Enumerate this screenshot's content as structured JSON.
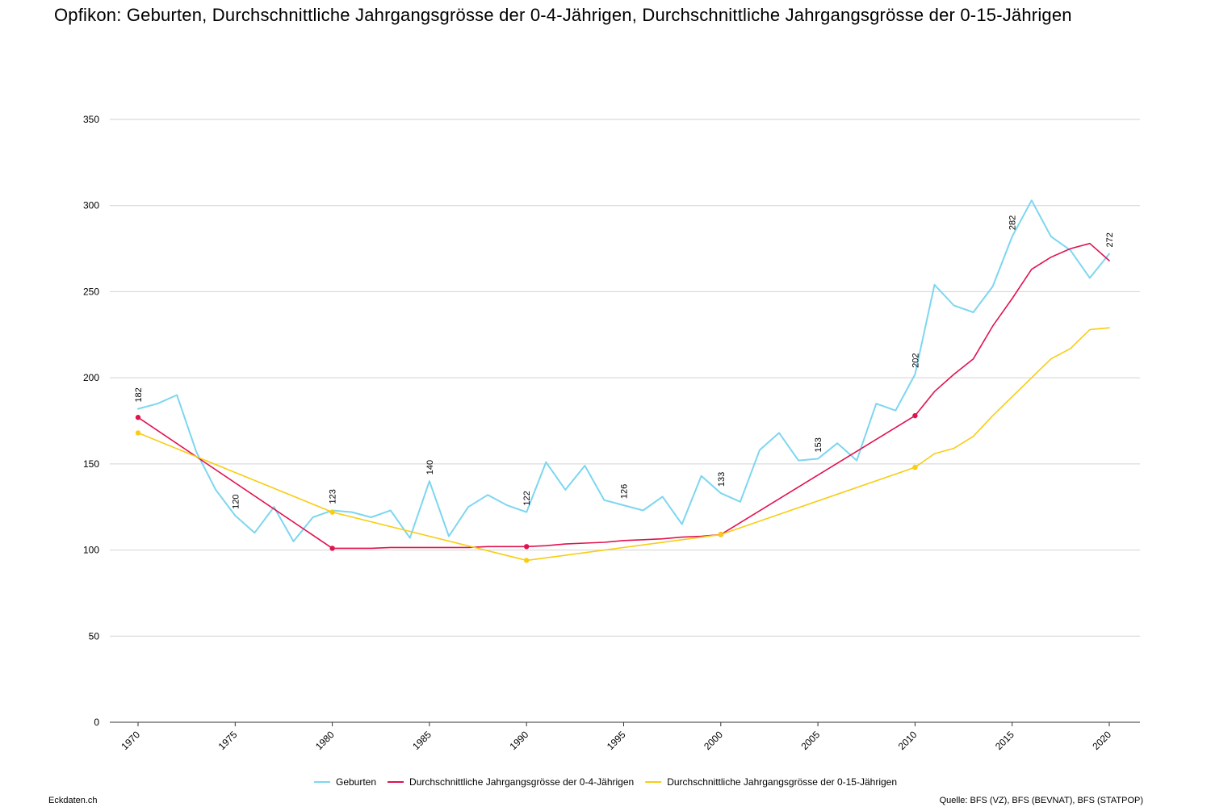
{
  "title": "Opfikon: Geburten, Durchschnittliche Jahrgangsgrösse der 0-4-Jährigen, Durchschnittliche Jahrgangsgrösse der 0-15-Jährigen",
  "footer": {
    "brand": "Eckdaten.ch",
    "source": "Quelle: BFS (VZ), BFS (BEVNAT), BFS (STATPOP)"
  },
  "chart_data": {
    "type": "line",
    "x_range": [
      1970,
      2020
    ],
    "ylim": [
      0,
      350
    ],
    "y_ticks": [
      0,
      50,
      100,
      150,
      200,
      250,
      300,
      350
    ],
    "x_ticks": [
      1970,
      1975,
      1980,
      1985,
      1990,
      1995,
      2000,
      2005,
      2010,
      2015,
      2020
    ],
    "grid": true,
    "legend_position": "bottom-center",
    "series": [
      {
        "name": "Geburten",
        "color": "#7dd6f0",
        "x": [
          1970,
          1971,
          1972,
          1973,
          1974,
          1975,
          1976,
          1977,
          1978,
          1979,
          1980,
          1981,
          1982,
          1983,
          1984,
          1985,
          1986,
          1987,
          1988,
          1989,
          1990,
          1991,
          1992,
          1993,
          1994,
          1995,
          1996,
          1997,
          1998,
          1999,
          2000,
          2001,
          2002,
          2003,
          2004,
          2005,
          2006,
          2007,
          2008,
          2009,
          2010,
          2011,
          2012,
          2013,
          2014,
          2015,
          2016,
          2017,
          2018,
          2019,
          2020
        ],
        "values": [
          182,
          185,
          190,
          157,
          135,
          120,
          110,
          125,
          105,
          119,
          123,
          122,
          119,
          123,
          107,
          140,
          108,
          125,
          132,
          126,
          122,
          151,
          135,
          149,
          129,
          126,
          123,
          131,
          115,
          143,
          133,
          128,
          158,
          168,
          152,
          153,
          162,
          152,
          185,
          181,
          202,
          254,
          242,
          238,
          253,
          282,
          303,
          282,
          274,
          258,
          272
        ],
        "labels": {
          "1970": 182,
          "1975": 120,
          "1980": 123,
          "1985": 140,
          "1990": 122,
          "1995": 126,
          "2000": 133,
          "2005": 153,
          "2010": 202,
          "2015": 282,
          "2020": 272
        }
      },
      {
        "name": "Durchschnittliche Jahrgangsgrösse der 0-4-Jährigen",
        "color": "#e0124f",
        "x": [
          1970,
          1980,
          1981,
          1982,
          1983,
          1984,
          1985,
          1986,
          1987,
          1988,
          1989,
          1990,
          1991,
          1992,
          1993,
          1994,
          1995,
          1996,
          1997,
          1998,
          1999,
          2000,
          2010,
          2011,
          2012,
          2013,
          2014,
          2015,
          2016,
          2017,
          2018,
          2019,
          2020
        ],
        "values": [
          177,
          101,
          101,
          101,
          101.5,
          101.5,
          101.5,
          101.5,
          101.5,
          102,
          102,
          102,
          102.5,
          103.5,
          104,
          104.5,
          105.5,
          106,
          106.5,
          107.5,
          108,
          109,
          178,
          192,
          202,
          211,
          230,
          246,
          263,
          270,
          275,
          278,
          268
        ],
        "markers": [
          1970,
          1980,
          1990,
          2000,
          2010
        ]
      },
      {
        "name": "Durchschnittliche Jahrgangsgrösse der 0-15-Jährigen",
        "color": "#f8cd12",
        "x": [
          1970,
          1980,
          1990,
          2000,
          2010,
          2011,
          2012,
          2013,
          2014,
          2015,
          2016,
          2017,
          2018,
          2019,
          2020
        ],
        "values": [
          168,
          122,
          94,
          109,
          148,
          156,
          159,
          166,
          178,
          189,
          200,
          211,
          217,
          228,
          229
        ],
        "markers": [
          1970,
          1980,
          1990,
          2000,
          2010
        ]
      }
    ]
  }
}
